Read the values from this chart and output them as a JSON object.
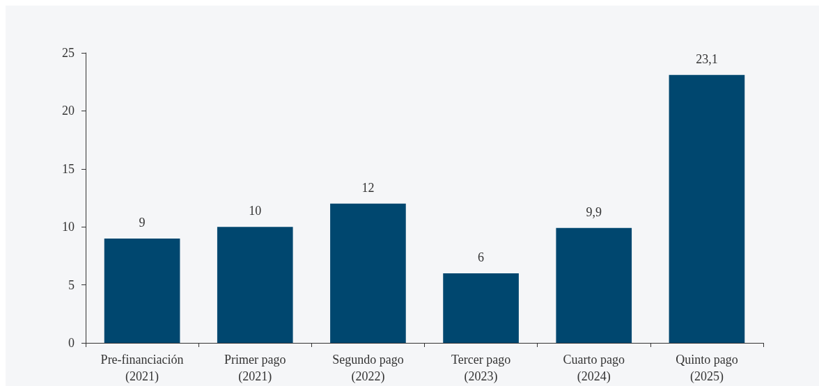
{
  "chart_data": {
    "type": "bar",
    "categories": [
      "Pre-financiación\n(2021)",
      "Primer pago\n(2021)",
      "Segundo pago\n(2022)",
      "Tercer pago\n(2023)",
      "Cuarto pago\n(2024)",
      "Quinto pago\n(2025)"
    ],
    "values": [
      9,
      10,
      12,
      6,
      9.9,
      23.1
    ],
    "value_labels": [
      "9",
      "10",
      "12",
      "6",
      "9,9",
      "23,1"
    ],
    "color": "#00476f",
    "ylim": [
      0,
      25
    ],
    "yticks": [
      0,
      5,
      10,
      15,
      20,
      25
    ],
    "grid": false
  }
}
